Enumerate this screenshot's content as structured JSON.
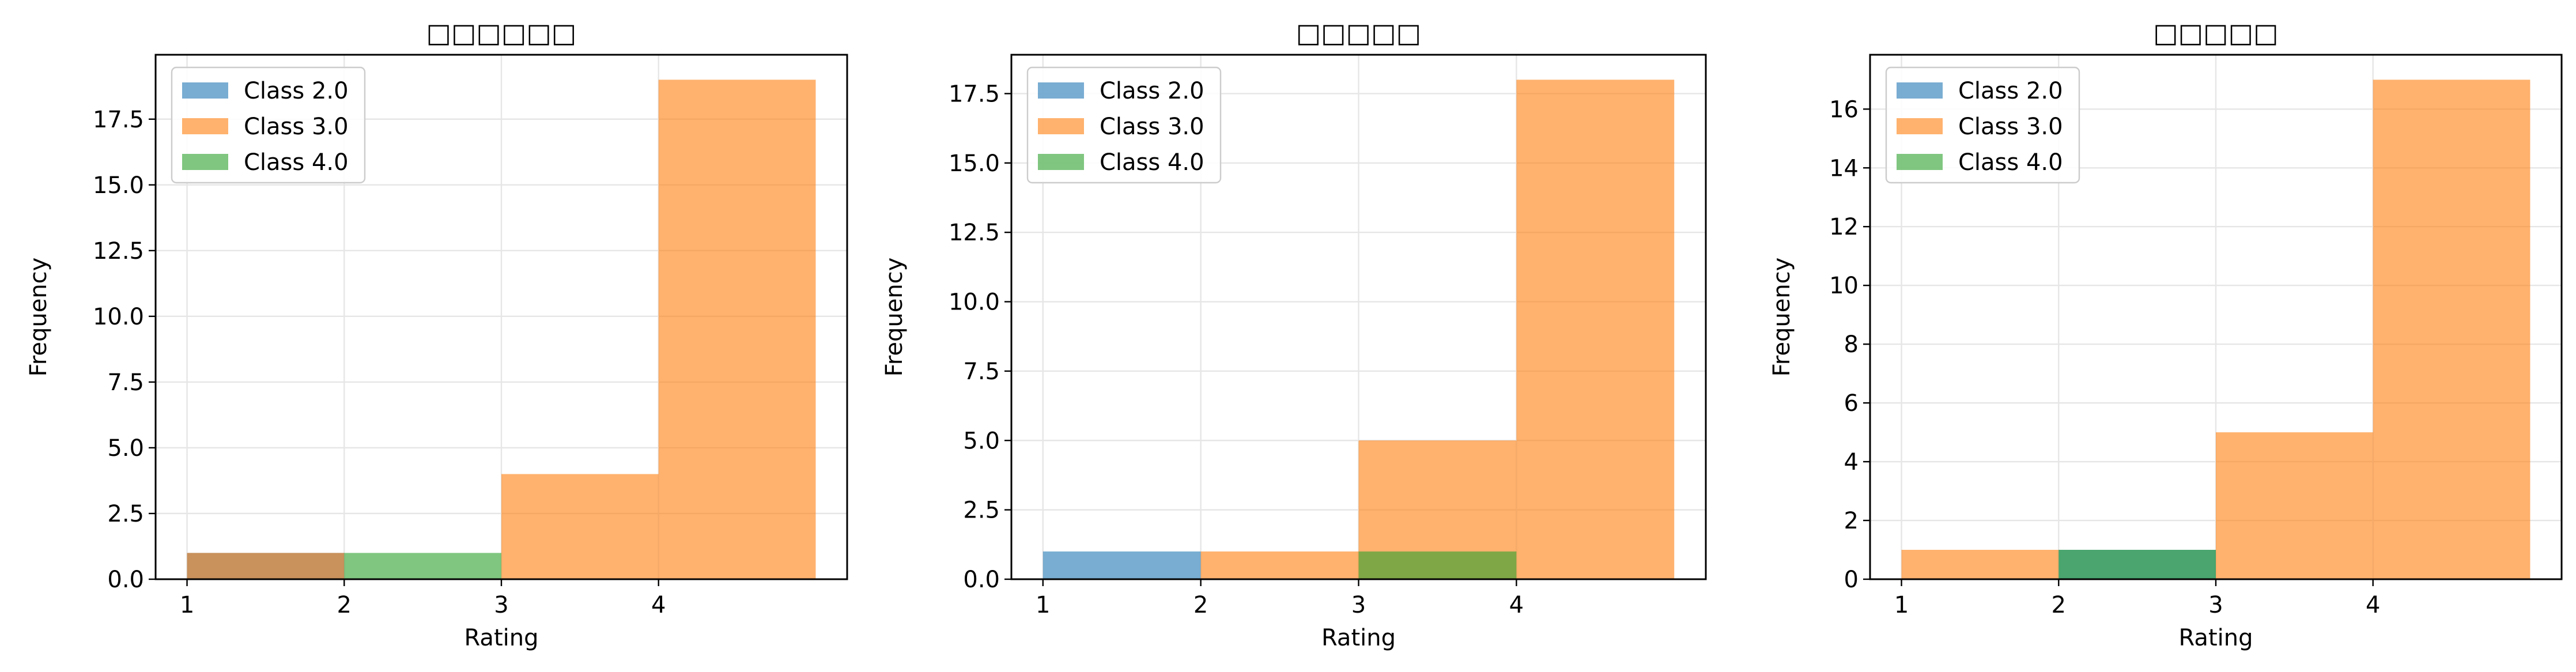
{
  "colors": {
    "class_2": "#1f77b4",
    "class_3": "#ff7f0e",
    "class_4": "#2ca02c",
    "grid": "#e6e6e6"
  },
  "chart_data": [
    {
      "type": "bar",
      "title": "□□□□□□",
      "xlabel": "Rating",
      "ylabel": "Frequency",
      "xlim": [
        0.8,
        5.2
      ],
      "ylim": [
        0,
        19.95
      ],
      "xticks": [
        "1",
        "2",
        "3",
        "4"
      ],
      "yticks": [
        "0.0",
        "2.5",
        "5.0",
        "7.5",
        "10.0",
        "12.5",
        "15.0",
        "17.5"
      ],
      "bins": [
        [
          1,
          2
        ],
        [
          2,
          3
        ],
        [
          3,
          4
        ],
        [
          4,
          5
        ]
      ],
      "grid": true,
      "legend_position": "top-left",
      "series": [
        {
          "name": "Class 2.0",
          "values": [
            1,
            0,
            0,
            0
          ]
        },
        {
          "name": "Class 3.0",
          "values": [
            1,
            0,
            4,
            19
          ]
        },
        {
          "name": "Class 4.0",
          "values": [
            0,
            1,
            0,
            0
          ]
        }
      ]
    },
    {
      "type": "bar",
      "title": "□□□□□",
      "xlabel": "Rating",
      "ylabel": "Frequency",
      "xlim": [
        0.8,
        5.2
      ],
      "ylim": [
        0,
        18.9
      ],
      "xticks": [
        "1",
        "2",
        "3",
        "4"
      ],
      "yticks": [
        "0.0",
        "2.5",
        "5.0",
        "7.5",
        "10.0",
        "12.5",
        "15.0",
        "17.5"
      ],
      "bins": [
        [
          1,
          2
        ],
        [
          2,
          3
        ],
        [
          3,
          4
        ],
        [
          4,
          5
        ]
      ],
      "grid": true,
      "legend_position": "top-left",
      "series": [
        {
          "name": "Class 2.0",
          "values": [
            1,
            0,
            0,
            0
          ]
        },
        {
          "name": "Class 3.0",
          "values": [
            0,
            1,
            5,
            18
          ]
        },
        {
          "name": "Class 4.0",
          "values": [
            0,
            0,
            1,
            0
          ]
        }
      ]
    },
    {
      "type": "bar",
      "title": "□□□□□",
      "xlabel": "Rating",
      "ylabel": "Frequency",
      "xlim": [
        0.8,
        5.2
      ],
      "ylim": [
        0,
        17.85
      ],
      "xticks": [
        "1",
        "2",
        "3",
        "4"
      ],
      "yticks": [
        "0",
        "2",
        "4",
        "6",
        "8",
        "10",
        "12",
        "14",
        "16"
      ],
      "bins": [
        [
          1,
          2
        ],
        [
          2,
          3
        ],
        [
          3,
          4
        ],
        [
          4,
          5
        ]
      ],
      "grid": true,
      "legend_position": "top-left",
      "series": [
        {
          "name": "Class 2.0",
          "values": [
            0,
            1,
            0,
            0
          ]
        },
        {
          "name": "Class 3.0",
          "values": [
            1,
            0,
            5,
            17
          ]
        },
        {
          "name": "Class 4.0",
          "values": [
            0,
            1,
            0,
            0
          ]
        }
      ]
    }
  ]
}
